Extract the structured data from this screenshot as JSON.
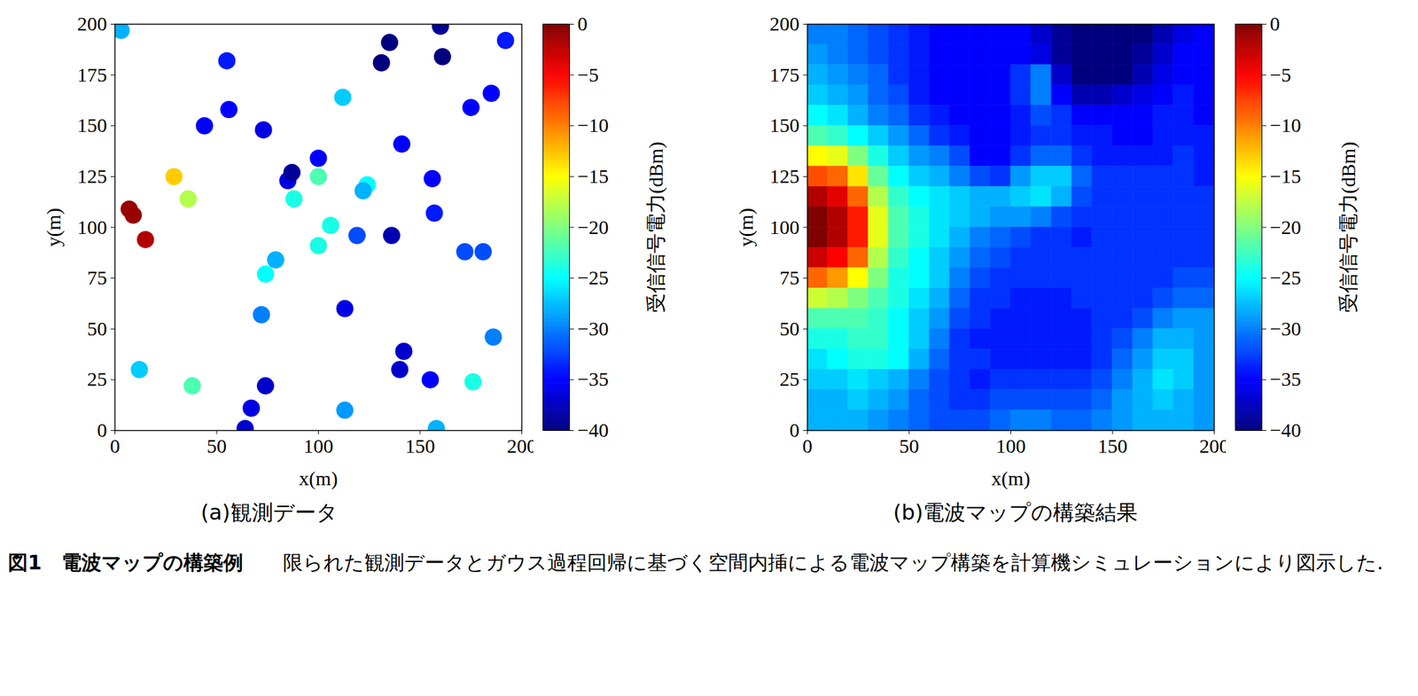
{
  "chart_data": [
    {
      "type": "scatter",
      "title": "(a)観測データ",
      "x_label": "x(m)",
      "y_label": "y(m)",
      "xlim": [
        0,
        200
      ],
      "ylim": [
        0,
        200
      ],
      "xticks": [
        0,
        50,
        100,
        150,
        200
      ],
      "yticks": [
        0,
        25,
        50,
        75,
        100,
        125,
        150,
        175,
        200
      ],
      "points": {
        "x": [
          3,
          55,
          135,
          160,
          131,
          161,
          192,
          112,
          185,
          175,
          56,
          44,
          73,
          141,
          100,
          85,
          87,
          100,
          29,
          124,
          122,
          156,
          36,
          88,
          7,
          9,
          15,
          106,
          119,
          157,
          100,
          136,
          172,
          181,
          79,
          74,
          113,
          72,
          186,
          142,
          140,
          155,
          12,
          38,
          74,
          176,
          67,
          113,
          64,
          158
        ],
        "y": [
          197,
          182,
          191,
          199,
          181,
          184,
          192,
          164,
          166,
          159,
          158,
          150,
          148,
          141,
          134,
          123,
          127,
          125,
          125,
          121,
          118,
          124,
          114,
          114,
          109,
          106,
          94,
          101,
          96,
          107,
          91,
          96,
          88,
          88,
          84,
          77,
          60,
          57,
          46,
          39,
          30,
          25,
          30,
          22,
          22,
          24,
          11,
          10,
          1,
          1
        ],
        "values": [
          -28,
          -34,
          -40,
          -39,
          -40,
          -40,
          -34,
          -27,
          -35,
          -35,
          -35,
          -35,
          -36,
          -35,
          -35,
          -36,
          -39,
          -22,
          -13,
          -25,
          -28,
          -35,
          -18,
          -24,
          -1,
          -1,
          -2,
          -24,
          -32,
          -34,
          -24,
          -38,
          -32,
          -32,
          -28,
          -25,
          -36,
          -30,
          -30,
          -37,
          -37,
          -35,
          -27,
          -22,
          -37,
          -24,
          -36,
          -29,
          -37,
          -28
        ]
      },
      "colorbar": {
        "label": "受信信号電力(dBm)",
        "range": [
          -40,
          0
        ],
        "ticks": [
          -40,
          -35,
          -30,
          -25,
          -20,
          -15,
          -10,
          -5,
          0
        ]
      }
    },
    {
      "type": "heatmap",
      "title": "(b)電波マップの構築結果",
      "x_label": "x(m)",
      "y_label": "y(m)",
      "xlim": [
        0,
        200
      ],
      "ylim": [
        0,
        200
      ],
      "xticks": [
        0,
        50,
        100,
        150,
        200
      ],
      "yticks": [
        0,
        25,
        50,
        75,
        100,
        125,
        150,
        175,
        200
      ],
      "x": [
        5,
        15,
        25,
        35,
        45,
        55,
        65,
        75,
        85,
        95,
        105,
        115,
        125,
        135,
        145,
        155,
        165,
        175,
        185,
        195
      ],
      "y": [
        195,
        185,
        175,
        165,
        155,
        145,
        135,
        125,
        115,
        105,
        95,
        85,
        75,
        65,
        55,
        45,
        35,
        25,
        15,
        5
      ],
      "cells": [
        [
          -30,
          -30,
          -31,
          -32,
          -33,
          -34,
          -35,
          -35,
          -35,
          -35,
          -35,
          -37,
          -39,
          -40,
          -40,
          -40,
          -40,
          -38,
          -36,
          -35
        ],
        [
          -29,
          -30,
          -31,
          -32,
          -33,
          -34,
          -35,
          -35,
          -35,
          -35,
          -35,
          -36,
          -39,
          -40,
          -40,
          -40,
          -39,
          -37,
          -35,
          -35
        ],
        [
          -28,
          -29,
          -30,
          -31,
          -33,
          -34,
          -35,
          -35,
          -35,
          -35,
          -33,
          -30,
          -37,
          -40,
          -40,
          -40,
          -38,
          -36,
          -35,
          -35
        ],
        [
          -27,
          -28,
          -29,
          -31,
          -32,
          -34,
          -35,
          -35,
          -35,
          -35,
          -33,
          -30,
          -35,
          -38,
          -38,
          -37,
          -36,
          -35,
          -34,
          -35
        ],
        [
          -25,
          -26,
          -28,
          -30,
          -31,
          -33,
          -34,
          -35,
          -35,
          -35,
          -34,
          -32,
          -33,
          -35,
          -35,
          -35,
          -35,
          -34,
          -34,
          -35
        ],
        [
          -22,
          -23,
          -25,
          -27,
          -29,
          -31,
          -33,
          -34,
          -35,
          -35,
          -34,
          -33,
          -33,
          -34,
          -34,
          -35,
          -35,
          -34,
          -34,
          -34
        ],
        [
          -15,
          -16,
          -20,
          -24,
          -27,
          -29,
          -30,
          -32,
          -35,
          -35,
          -33,
          -31,
          -31,
          -33,
          -34,
          -34,
          -34,
          -34,
          -33,
          -34
        ],
        [
          -8,
          -9,
          -14,
          -21,
          -25,
          -27,
          -28,
          -30,
          -32,
          -33,
          -29,
          -27,
          -27,
          -31,
          -33,
          -33,
          -33,
          -33,
          -33,
          -34
        ],
        [
          -2,
          -4,
          -9,
          -18,
          -23,
          -25,
          -26,
          -27,
          -28,
          -28,
          -27,
          -26,
          -28,
          -32,
          -33,
          -33,
          -33,
          -33,
          -33,
          -33
        ],
        [
          0,
          -2,
          -6,
          -16,
          -22,
          -24,
          -26,
          -27,
          -28,
          -29,
          -29,
          -30,
          -32,
          -33,
          -33,
          -33,
          -33,
          -33,
          -33,
          -33
        ],
        [
          0,
          -2,
          -6,
          -16,
          -22,
          -24,
          -26,
          -28,
          -30,
          -31,
          -32,
          -33,
          -33,
          -34,
          -33,
          -33,
          -33,
          -33,
          -33,
          -33
        ],
        [
          -3,
          -5,
          -9,
          -18,
          -23,
          -25,
          -27,
          -29,
          -31,
          -32,
          -33,
          -33,
          -33,
          -33,
          -33,
          -33,
          -33,
          -33,
          -33,
          -33
        ],
        [
          -9,
          -11,
          -15,
          -20,
          -24,
          -25,
          -27,
          -30,
          -32,
          -33,
          -33,
          -33,
          -33,
          -33,
          -33,
          -33,
          -33,
          -33,
          -32,
          -32
        ],
        [
          -17,
          -18,
          -20,
          -22,
          -24,
          -26,
          -28,
          -31,
          -33,
          -33,
          -34,
          -34,
          -34,
          -33,
          -33,
          -33,
          -33,
          -32,
          -31,
          -31
        ],
        [
          -22,
          -22,
          -22,
          -23,
          -25,
          -27,
          -29,
          -32,
          -33,
          -34,
          -34,
          -34,
          -34,
          -34,
          -33,
          -33,
          -32,
          -30,
          -29,
          -29
        ],
        [
          -24,
          -24,
          -23,
          -23,
          -25,
          -27,
          -30,
          -33,
          -34,
          -34,
          -34,
          -34,
          -34,
          -34,
          -33,
          -32,
          -30,
          -28,
          -28,
          -29
        ],
        [
          -26,
          -25,
          -24,
          -24,
          -25,
          -28,
          -31,
          -33,
          -33,
          -34,
          -34,
          -34,
          -34,
          -34,
          -33,
          -31,
          -29,
          -27,
          -27,
          -29
        ],
        [
          -27,
          -27,
          -26,
          -27,
          -28,
          -30,
          -32,
          -33,
          -34,
          -33,
          -33,
          -33,
          -33,
          -33,
          -32,
          -30,
          -28,
          -26,
          -27,
          -29
        ],
        [
          -28,
          -28,
          -27,
          -28,
          -29,
          -31,
          -32,
          -33,
          -33,
          -32,
          -32,
          -32,
          -32,
          -32,
          -31,
          -29,
          -28,
          -27,
          -28,
          -29
        ],
        [
          -28,
          -28,
          -28,
          -29,
          -30,
          -31,
          -32,
          -32,
          -32,
          -31,
          -30,
          -30,
          -31,
          -31,
          -30,
          -29,
          -28,
          -28,
          -28,
          -29
        ]
      ],
      "colorbar": {
        "label": "受信信号電力(dBm)",
        "range": [
          -40,
          0
        ],
        "ticks": [
          -40,
          -35,
          -30,
          -25,
          -20,
          -15,
          -10,
          -5,
          0
        ]
      }
    }
  ],
  "caption": {
    "figure": "図1",
    "title": "電波マップの構築例",
    "text": "限られた観測データとガウス過程回帰に基づく空間内挿による電波マップ構築を計算機シミュレーションにより図示した."
  }
}
